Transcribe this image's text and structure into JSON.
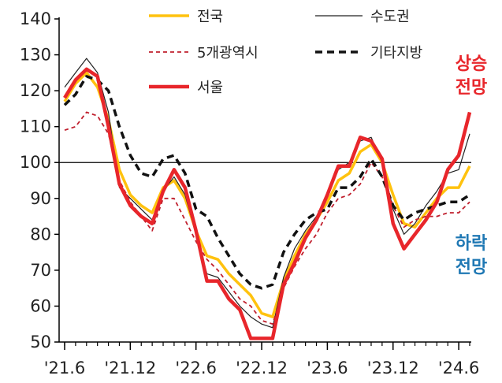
{
  "chart_data": {
    "type": "line",
    "title": "",
    "xlabel": "",
    "ylabel": "",
    "ylim": [
      50,
      140
    ],
    "yticks": [
      50,
      60,
      70,
      80,
      90,
      100,
      110,
      120,
      130,
      140
    ],
    "reference_line": 100,
    "x_tick_labels": [
      "'21.6",
      "'21.12",
      "'22.6",
      "'22.12",
      "'23.6",
      "'23.12",
      "'24.6"
    ],
    "x_tick_indices": [
      0,
      6,
      12,
      18,
      24,
      30,
      36
    ],
    "legend_position": "top",
    "annotations": [
      {
        "label": "상승\n전망",
        "color": "#e8262b",
        "position": "right-top"
      },
      {
        "label": "하락\n전망",
        "color": "#1f78b4",
        "position": "right-middle"
      }
    ],
    "series": [
      {
        "name": "전국",
        "color": "#ffc20e",
        "style": "solid",
        "values": [
          117,
          122,
          125,
          121,
          112,
          98,
          91,
          88,
          86,
          93,
          95,
          90,
          81,
          74,
          73,
          69,
          66,
          63,
          58,
          57,
          67,
          74,
          80,
          84,
          89,
          95,
          97,
          103,
          105,
          100,
          91,
          83,
          82,
          86,
          90,
          93,
          93,
          99
        ]
      },
      {
        "name": "수도권",
        "color": "#222222",
        "style": "thin",
        "values": [
          121,
          125,
          129,
          125,
          114,
          93,
          90,
          87,
          84,
          92,
          96,
          91,
          80,
          69,
          68,
          64,
          60,
          57,
          55,
          54,
          68,
          76,
          81,
          85,
          91,
          98,
          100,
          106,
          107,
          100,
          87,
          80,
          83,
          88,
          92,
          97,
          98,
          108
        ]
      },
      {
        "name": "5개광역시",
        "color": "#c0202e",
        "style": "dashed",
        "values": [
          109,
          110,
          114,
          113,
          108,
          95,
          89,
          85,
          81,
          90,
          90,
          84,
          78,
          73,
          70,
          66,
          62,
          60,
          56,
          55,
          65,
          71,
          76,
          80,
          86,
          90,
          91,
          94,
          100,
          96,
          88,
          82,
          84,
          85,
          85,
          86,
          86,
          89
        ]
      },
      {
        "name": "기타지방",
        "color": "#111111",
        "style": "bold-dashed",
        "values": [
          116,
          119,
          124,
          123,
          120,
          110,
          102,
          97,
          96,
          101,
          102,
          97,
          87,
          85,
          79,
          74,
          69,
          66,
          65,
          66,
          75,
          80,
          84,
          86,
          87,
          93,
          93,
          96,
          101,
          96,
          88,
          84,
          86,
          87,
          88,
          89,
          89,
          91
        ]
      },
      {
        "name": "서울",
        "color": "#e8262b",
        "style": "bold",
        "values": [
          118,
          123,
          126,
          124,
          110,
          94,
          88,
          85,
          83,
          92,
          98,
          93,
          81,
          67,
          67,
          62,
          59,
          51,
          51,
          51,
          66,
          72,
          79,
          84,
          91,
          99,
          99,
          107,
          106,
          101,
          83,
          76,
          80,
          84,
          89,
          98,
          102,
          114
        ]
      }
    ]
  }
}
